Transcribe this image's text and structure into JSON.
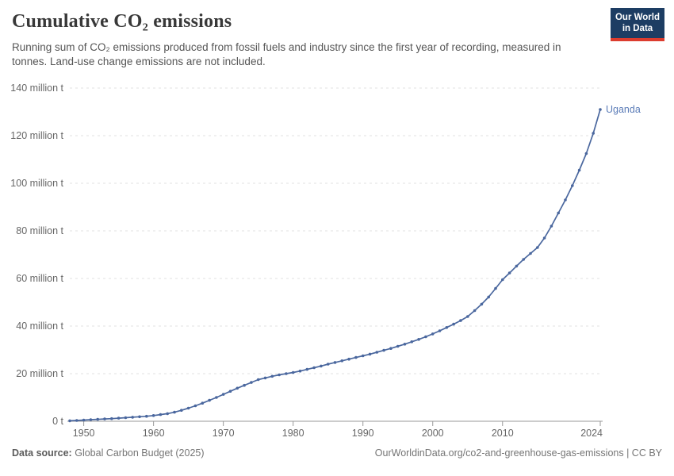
{
  "header": {
    "title": "Cumulative CO₂ emissions",
    "subtitle": "Running sum of CO₂ emissions produced from fossil fuels and industry since the first year of recording, measured in tonnes. Land-use change emissions are not included.",
    "logo": {
      "line1": "Our World",
      "line2": "in Data"
    }
  },
  "footer": {
    "source_label": "Data source:",
    "source_value": "Global Carbon Budget (2025)",
    "credit": "OurWorldinData.org/co2-and-greenhouse-gas-emissions | CC BY"
  },
  "colors": {
    "line": "#4a679e",
    "entity_label": "#5c7db8",
    "grid": "#e2e2e2",
    "axis": "#999999",
    "tick_text": "#666666",
    "logo_bg": "#1d3d63",
    "logo_stripe": "#dc3c2e"
  },
  "chart_data": {
    "type": "line",
    "title": "Cumulative CO₂ emissions",
    "entity": "Uganda",
    "ylabel": "",
    "xlabel": "",
    "unit": "million tonnes",
    "grid": "dashed horizontal",
    "legend_position": "end-of-line label",
    "xlim": [
      1948,
      2024
    ],
    "ylim": [
      0,
      140
    ],
    "x_ticks": [
      1950,
      1960,
      1970,
      1980,
      1990,
      2000,
      2010,
      2024
    ],
    "y_ticks": [
      {
        "value": 0,
        "label": "0 t"
      },
      {
        "value": 20,
        "label": "20 million t"
      },
      {
        "value": 40,
        "label": "40 million t"
      },
      {
        "value": 60,
        "label": "60 million t"
      },
      {
        "value": 80,
        "label": "80 million t"
      },
      {
        "value": 100,
        "label": "100 million t"
      },
      {
        "value": 120,
        "label": "120 million t"
      },
      {
        "value": 140,
        "label": "140 million t"
      }
    ],
    "series": [
      {
        "name": "Uganda",
        "x": [
          1948,
          1949,
          1950,
          1951,
          1952,
          1953,
          1954,
          1955,
          1956,
          1957,
          1958,
          1959,
          1960,
          1961,
          1962,
          1963,
          1964,
          1965,
          1966,
          1967,
          1968,
          1969,
          1970,
          1971,
          1972,
          1973,
          1974,
          1975,
          1976,
          1977,
          1978,
          1979,
          1980,
          1981,
          1982,
          1983,
          1984,
          1985,
          1986,
          1987,
          1988,
          1989,
          1990,
          1991,
          1992,
          1993,
          1994,
          1995,
          1996,
          1997,
          1998,
          1999,
          2000,
          2001,
          2002,
          2003,
          2004,
          2005,
          2006,
          2007,
          2008,
          2009,
          2010,
          2011,
          2012,
          2013,
          2014,
          2015,
          2016,
          2017,
          2018,
          2019,
          2020,
          2021,
          2022,
          2023,
          2024
        ],
        "y": [
          0.2,
          0.35,
          0.5,
          0.65,
          0.8,
          0.95,
          1.1,
          1.3,
          1.5,
          1.7,
          1.9,
          2.1,
          2.4,
          2.8,
          3.2,
          3.8,
          4.6,
          5.5,
          6.5,
          7.6,
          8.8,
          10.0,
          11.3,
          12.6,
          13.9,
          15.1,
          16.3,
          17.5,
          18.2,
          18.9,
          19.5,
          20.0,
          20.5,
          21.1,
          21.8,
          22.5,
          23.2,
          24.0,
          24.7,
          25.4,
          26.1,
          26.8,
          27.5,
          28.2,
          29.0,
          29.8,
          30.6,
          31.5,
          32.4,
          33.4,
          34.4,
          35.5,
          36.7,
          38.0,
          39.4,
          40.8,
          42.3,
          44.0,
          46.5,
          49.2,
          52.2,
          55.8,
          59.5,
          62.3,
          65.2,
          68.0,
          70.5,
          73.0,
          77.0,
          82.0,
          87.5,
          93.0,
          99.0,
          105.5,
          112.5,
          121.0,
          131.0
        ]
      }
    ]
  }
}
